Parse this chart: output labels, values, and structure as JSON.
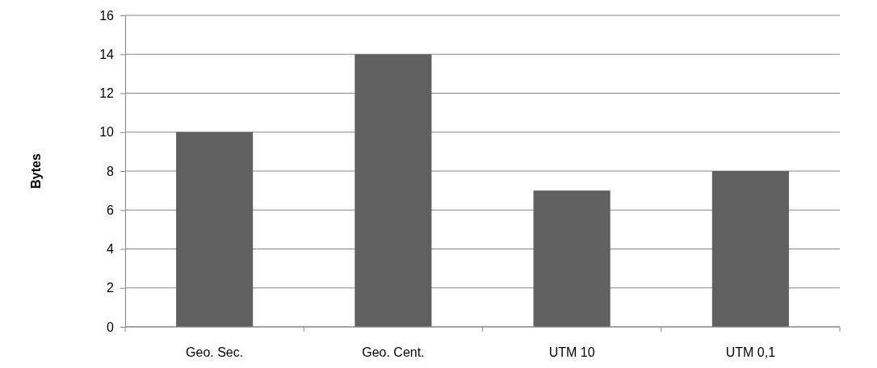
{
  "chart_data": {
    "type": "bar",
    "ylabel": "Bytes",
    "categories": [
      "Geo. Sec.",
      "Geo. Cent.",
      "UTM 10",
      "UTM 0,1"
    ],
    "values": [
      10,
      14,
      7,
      8
    ],
    "color": "#606060",
    "ylim": [
      0,
      16
    ],
    "yticks": [
      0,
      2,
      4,
      6,
      8,
      10,
      12,
      14,
      16
    ],
    "grid": "y"
  }
}
